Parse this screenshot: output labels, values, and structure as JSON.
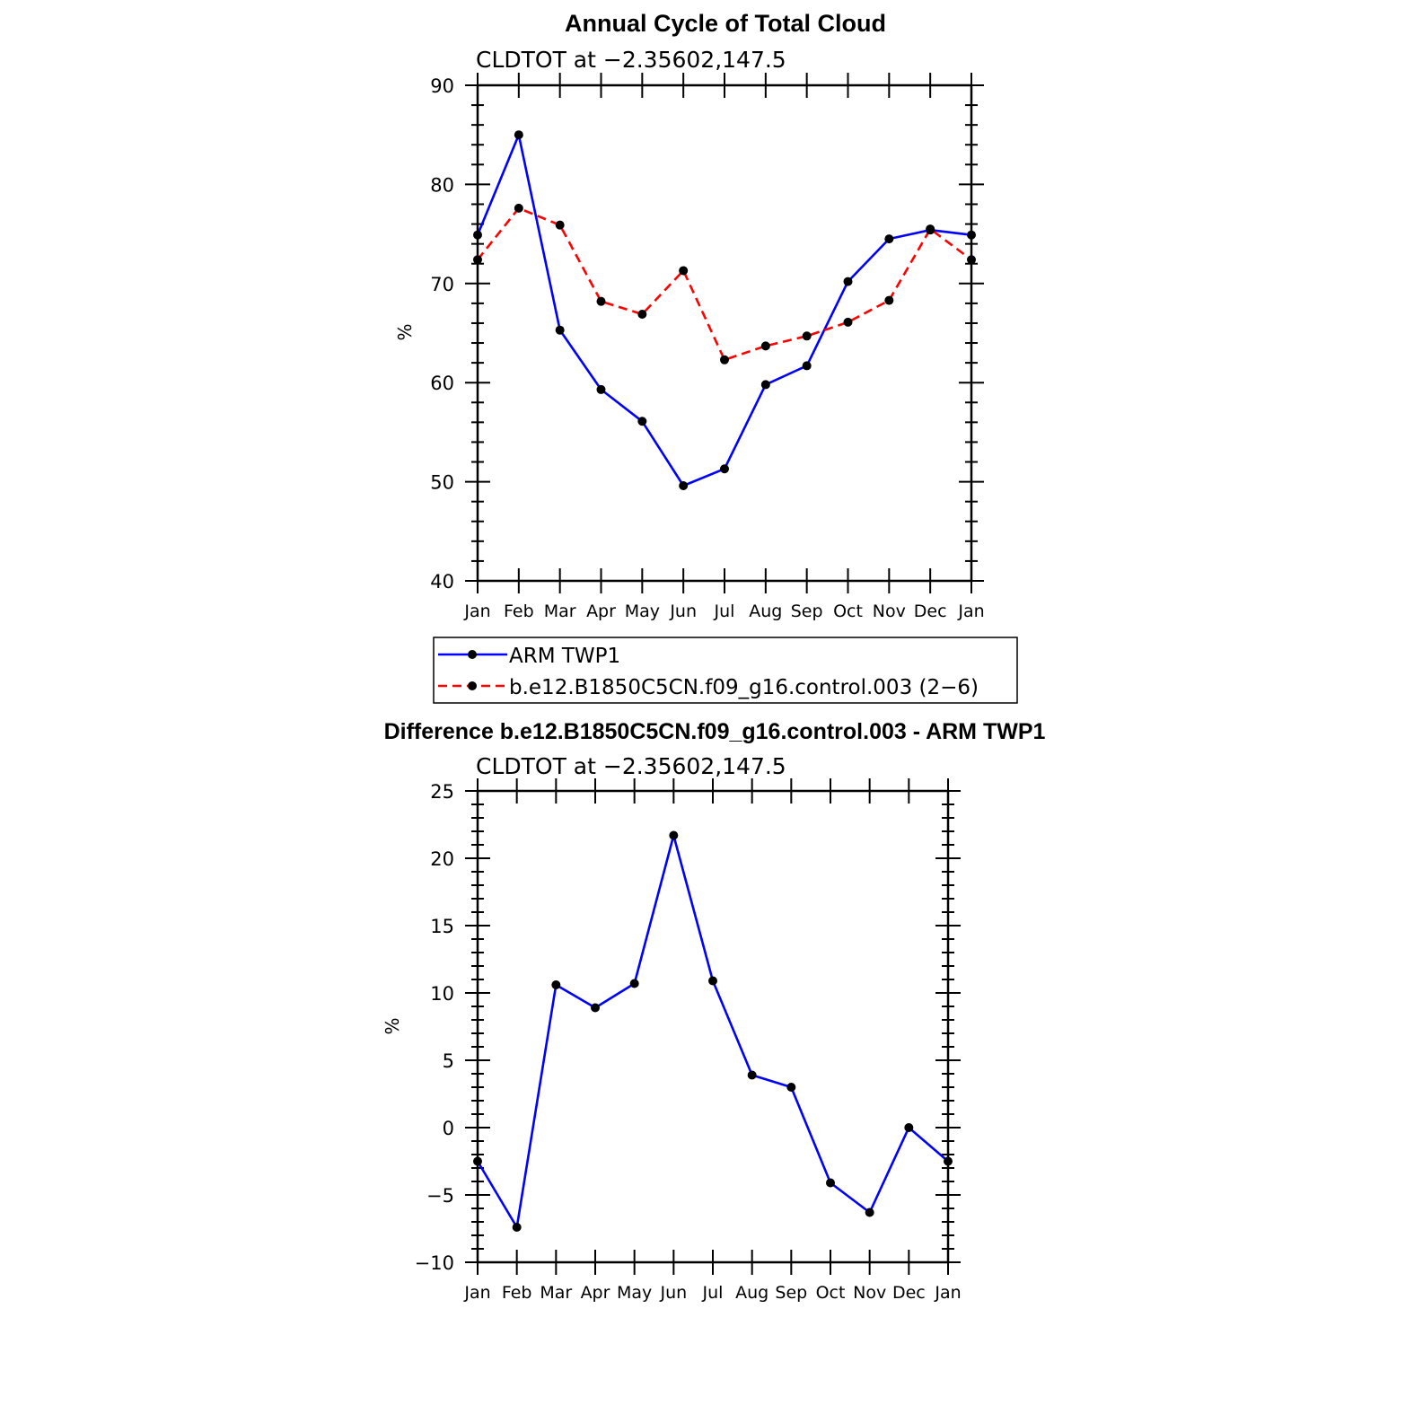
{
  "chart_data": [
    {
      "type": "line",
      "title": "Annual Cycle of Total Cloud",
      "subtitle": "CLDTOT at −2.35602,147.5",
      "xlabel": "",
      "ylabel": "%",
      "ylim": [
        40,
        90
      ],
      "yticks": [
        "40",
        "50",
        "60",
        "70",
        "80",
        "90"
      ],
      "categories": [
        "Jan",
        "Feb",
        "Mar",
        "Apr",
        "May",
        "Jun",
        "Jul",
        "Aug",
        "Sep",
        "Oct",
        "Nov",
        "Dec",
        "Jan"
      ],
      "series": [
        {
          "name": "ARM TWP1",
          "color": "#0000ff",
          "dash": "solid",
          "values": [
            74.9,
            85.0,
            65.3,
            59.3,
            56.1,
            49.6,
            51.3,
            59.8,
            61.7,
            70.2,
            74.5,
            75.4,
            74.9
          ]
        },
        {
          "name": "b.e12.B1850C5CN.f09_g16.control.003 (2−6)",
          "color": "#ff0000",
          "dash": "dashed",
          "values": [
            72.4,
            77.6,
            75.9,
            68.2,
            66.9,
            71.3,
            62.3,
            63.7,
            64.7,
            66.1,
            68.3,
            75.5,
            72.4
          ]
        }
      ]
    },
    {
      "type": "line",
      "title": "Difference b.e12.B1850C5CN.f09_g16.control.003 - ARM TWP1",
      "subtitle": "CLDTOT at −2.35602,147.5",
      "xlabel": "",
      "ylabel": "%",
      "ylim": [
        -10,
        25
      ],
      "yticks": [
        "−10",
        "−5",
        "0",
        "5",
        "10",
        "15",
        "20",
        "25"
      ],
      "categories": [
        "Jan",
        "Feb",
        "Mar",
        "Apr",
        "May",
        "Jun",
        "Jul",
        "Aug",
        "Sep",
        "Oct",
        "Nov",
        "Dec",
        "Jan"
      ],
      "series": [
        {
          "name": "Difference",
          "color": "#0000ff",
          "dash": "solid",
          "values": [
            -2.5,
            -7.4,
            10.6,
            8.9,
            10.7,
            21.7,
            10.9,
            3.9,
            3.0,
            -4.1,
            -6.3,
            0.0,
            -2.5
          ]
        }
      ]
    }
  ]
}
